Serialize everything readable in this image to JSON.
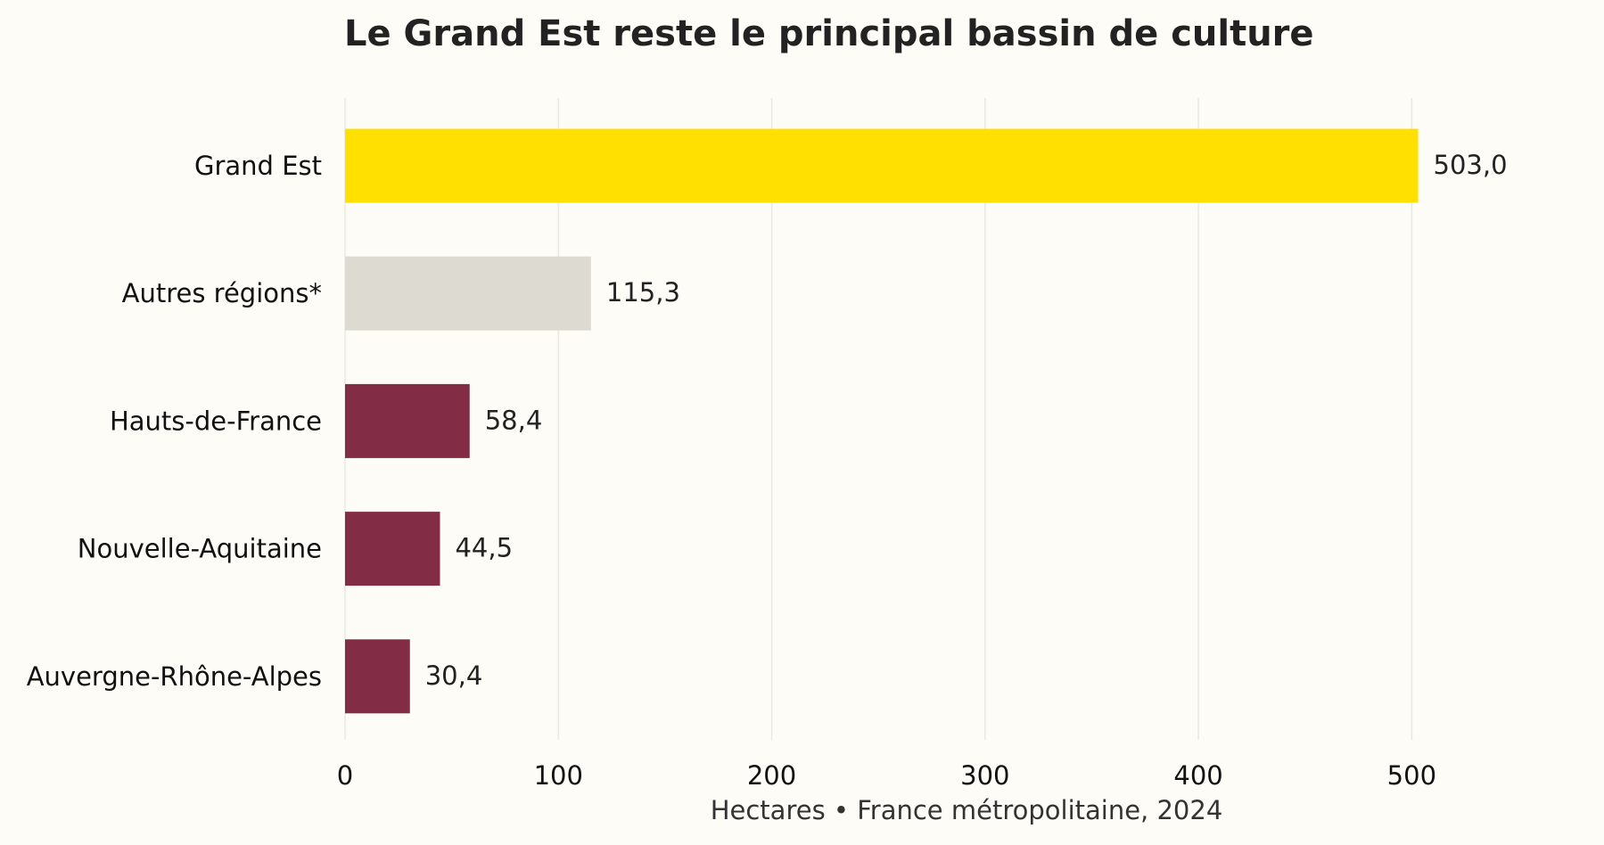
{
  "chart_data": {
    "type": "bar",
    "orientation": "horizontal",
    "title": "Le Grand Est reste le principal bassin de culture",
    "xlabel": "Hectares • France métropolitaine, 2024",
    "ylabel": "",
    "categories": [
      "Grand Est",
      "Autres régions*",
      "Hauts-de-France",
      "Nouvelle-Aquitaine",
      "Auvergne-Rhône-Alpes"
    ],
    "values": [
      503.0,
      115.3,
      58.4,
      44.5,
      30.4
    ],
    "value_labels": [
      "503,0",
      "115,3",
      "58,4",
      "44,5",
      "30,4"
    ],
    "bar_colors": [
      "#ffe000",
      "#dddbd1",
      "#822d45",
      "#822d45",
      "#822d45"
    ],
    "xlim": [
      0,
      550
    ],
    "xticks": [
      0,
      100,
      200,
      300,
      400,
      500
    ],
    "xtick_labels": [
      "0",
      "100",
      "200",
      "300",
      "400",
      "500"
    ],
    "grid": "vertical",
    "legend": "none",
    "colors": {
      "background": "#fdfcf7",
      "text": "#222222",
      "grid": "#e9e8e2"
    }
  }
}
